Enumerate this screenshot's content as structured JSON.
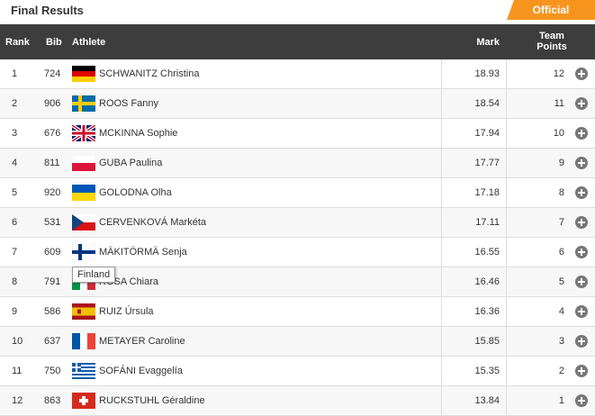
{
  "header": {
    "title": "Final Results",
    "status": "Official"
  },
  "table": {
    "columns": [
      "Rank",
      "Bib",
      "Athlete",
      "Mark",
      "Team Points"
    ],
    "rows": [
      [
        "1",
        "724",
        "SCHWANITZ Christina",
        "18.93",
        "12"
      ],
      [
        "2",
        "906",
        "ROOS Fanny",
        "18.54",
        "11"
      ],
      [
        "3",
        "676",
        "MCKINNA Sophie",
        "17.94",
        "10"
      ],
      [
        "4",
        "811",
        "GUBA Paulina",
        "17.77",
        "9"
      ],
      [
        "5",
        "920",
        "GOLODNA Olha",
        "17.18",
        "8"
      ],
      [
        "6",
        "531",
        "CERVENKOVÁ Markéta",
        "17.11",
        "7"
      ],
      [
        "7",
        "609",
        "MÄKITÖRMÄ Senja",
        "16.55",
        "6"
      ],
      [
        "8",
        "791",
        "ROSA Chiara",
        "16.46",
        "5"
      ],
      [
        "9",
        "586",
        "RUIZ Úrsula",
        "16.36",
        "4"
      ],
      [
        "10",
        "637",
        "METAYER Caroline",
        "15.85",
        "3"
      ],
      [
        "11",
        "750",
        "SOFÁNI Evaggelía",
        "15.35",
        "2"
      ],
      [
        "12",
        "863",
        "RUCKSTUHL Géraldine",
        "13.84",
        "1"
      ]
    ]
  },
  "tooltip": "Finland"
}
